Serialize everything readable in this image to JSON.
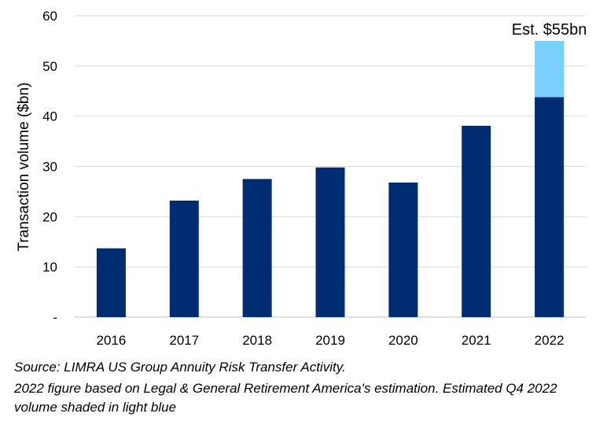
{
  "chart_data": {
    "type": "bar",
    "categories": [
      "2016",
      "2017",
      "2018",
      "2019",
      "2020",
      "2021",
      "2022"
    ],
    "series": [
      {
        "values": [
          13.7,
          23.2,
          27.5,
          29.8,
          26.8,
          38.1,
          43.8
        ]
      },
      {
        "values": [
          0,
          0,
          0,
          0,
          0,
          0,
          11.2
        ]
      }
    ],
    "colors": [
      "#002d72",
      "#79d0ff"
    ],
    "stacked": true,
    "ylabel": "Transaction volume ($bn)",
    "ylim": [
      0,
      60
    ],
    "yticks": [
      0,
      10,
      20,
      30,
      40,
      50,
      60
    ],
    "ytick_labels": [
      "-",
      "10",
      "20",
      "30",
      "40",
      "50",
      "60"
    ],
    "grid": true,
    "annotations": [
      {
        "category": "2022",
        "text": "Est. $55bn"
      }
    ]
  },
  "footnotes": {
    "line1": "Source: LIMRA US Group Annuity Risk Transfer Activity.",
    "line2": "2022 figure based on Legal & General Retirement America's estimation. Estimated Q4 2022 volume shaded in light blue"
  }
}
